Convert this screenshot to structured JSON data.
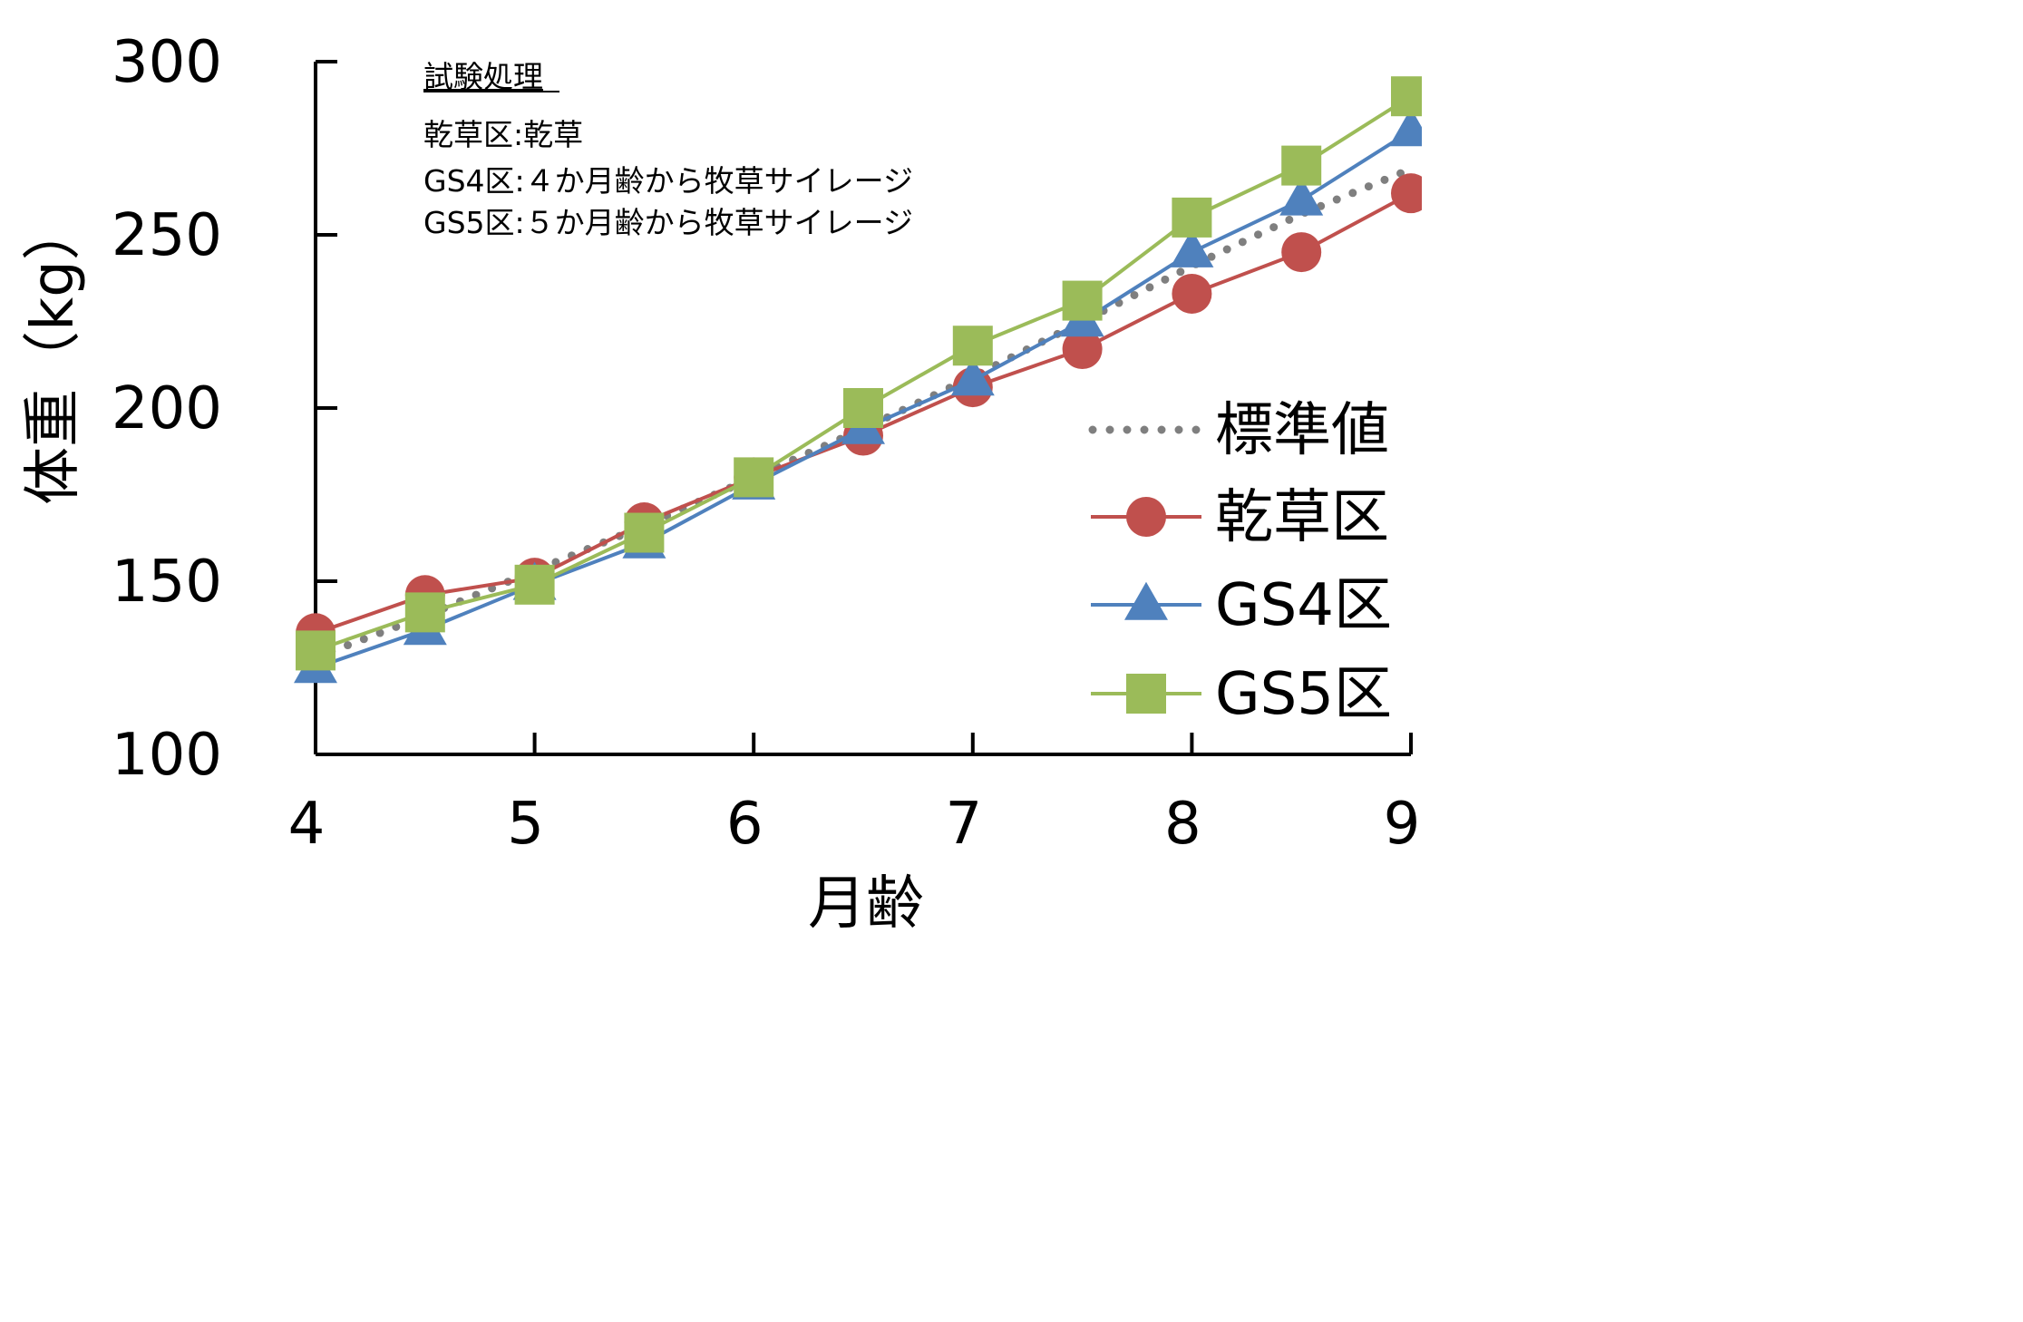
{
  "chart_data": {
    "type": "line",
    "title": "",
    "xlabel": "月齢",
    "ylabel": "体重（kg）",
    "xlim": [
      4,
      9
    ],
    "ylim": [
      100,
      300
    ],
    "x_ticks": [
      "4",
      "5",
      "6",
      "7",
      "8",
      "9"
    ],
    "y_ticks": [
      "100",
      "150",
      "200",
      "250",
      "300"
    ],
    "x": [
      4,
      4.5,
      5,
      5.5,
      6,
      6.5,
      7,
      7.5,
      8,
      8.5,
      9
    ],
    "series": [
      {
        "name": "標準値",
        "color": "#7f7f7f",
        "style": "dotted",
        "marker": "none",
        "values": [
          128,
          140,
          153,
          166,
          180,
          194,
          209,
          225,
          241,
          256,
          269
        ]
      },
      {
        "name": "乾草区",
        "color": "#c0504d",
        "style": "solid",
        "marker": "circle",
        "values": [
          135,
          146,
          151,
          167,
          180,
          192,
          206,
          217,
          233,
          245,
          262
        ]
      },
      {
        "name": "GS4区",
        "color": "#4f81bd",
        "style": "solid",
        "marker": "triangle",
        "values": [
          125,
          136,
          149,
          161,
          178,
          194,
          208,
          225,
          245,
          260,
          280
        ]
      },
      {
        "name": "GS5区",
        "color": "#9bbb59",
        "style": "solid",
        "marker": "square",
        "values": [
          130,
          141,
          149,
          164,
          180,
          200,
          218,
          231,
          255,
          270,
          290
        ]
      }
    ],
    "legend_position": "right",
    "grid": false
  },
  "note": {
    "title": "試験処理",
    "lines": [
      "乾草区:乾草",
      "GS4区:４か月齢から牧草サイレージ",
      "GS5区:５か月齢から牧草サイレージ"
    ]
  }
}
